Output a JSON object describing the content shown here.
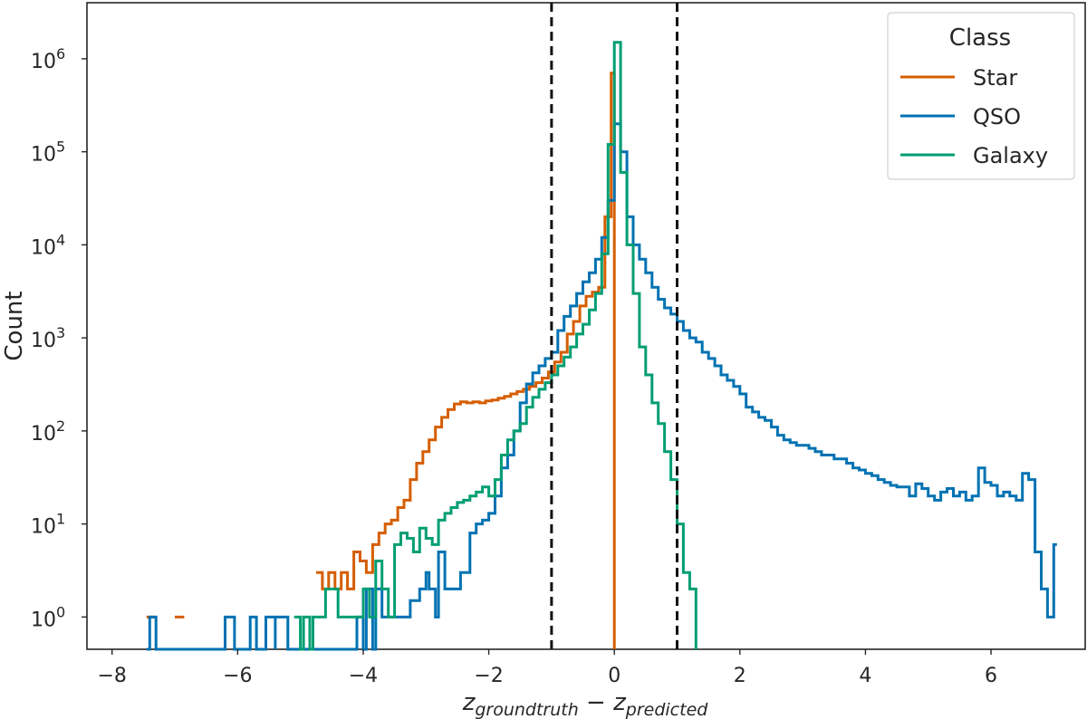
{
  "chart_data": {
    "type": "line",
    "drawstyle": "steps-post",
    "title": "",
    "xlabel": "z_{groundtruth} − z_{predicted}",
    "xlabel_parts": {
      "base1": "z",
      "sub1": "groundtruth",
      "op": " − ",
      "base2": "z",
      "sub2": "predicted"
    },
    "ylabel": "Count",
    "xlim": [
      -8.4,
      7.5
    ],
    "ylim": [
      0.45,
      4000000
    ],
    "yscale": "log",
    "grid": false,
    "x_ticks": [
      -8,
      -6,
      -4,
      -2,
      0,
      2,
      4,
      6
    ],
    "x_tick_labels": [
      "−8",
      "−6",
      "−4",
      "−2",
      "0",
      "2",
      "4",
      "6"
    ],
    "y_ticks": [
      1,
      10,
      100,
      1000,
      10000,
      100000,
      1000000
    ],
    "y_tick_labels": [
      {
        "base": "10",
        "exp": "0"
      },
      {
        "base": "10",
        "exp": "1"
      },
      {
        "base": "10",
        "exp": "2"
      },
      {
        "base": "10",
        "exp": "3"
      },
      {
        "base": "10",
        "exp": "4"
      },
      {
        "base": "10",
        "exp": "5"
      },
      {
        "base": "10",
        "exp": "6"
      }
    ],
    "reference_lines": [
      -1,
      1
    ],
    "legend": {
      "title": "Class",
      "placement": "top-right"
    },
    "series": [
      {
        "name": "Star",
        "color": "#d55e00",
        "points": [
          [
            -7.45,
            1
          ],
          [
            -7.3,
            null
          ],
          [
            -7.0,
            1
          ],
          [
            -6.85,
            null
          ],
          [
            -4.75,
            3
          ],
          [
            -4.65,
            2
          ],
          [
            -4.55,
            3
          ],
          [
            -4.45,
            2
          ],
          [
            -4.35,
            3
          ],
          [
            -4.25,
            2
          ],
          [
            -4.15,
            5
          ],
          [
            -4.05,
            4
          ],
          [
            -3.95,
            3
          ],
          [
            -3.85,
            6
          ],
          [
            -3.75,
            8
          ],
          [
            -3.65,
            10
          ],
          [
            -3.55,
            11
          ],
          [
            -3.45,
            15
          ],
          [
            -3.35,
            18
          ],
          [
            -3.25,
            30
          ],
          [
            -3.15,
            45
          ],
          [
            -3.05,
            60
          ],
          [
            -2.95,
            80
          ],
          [
            -2.85,
            110
          ],
          [
            -2.75,
            140
          ],
          [
            -2.65,
            170
          ],
          [
            -2.55,
            195
          ],
          [
            -2.45,
            205
          ],
          [
            -2.35,
            200
          ],
          [
            -2.25,
            205
          ],
          [
            -2.15,
            200
          ],
          [
            -2.05,
            210
          ],
          [
            -1.95,
            215
          ],
          [
            -1.85,
            225
          ],
          [
            -1.75,
            235
          ],
          [
            -1.65,
            250
          ],
          [
            -1.55,
            265
          ],
          [
            -1.45,
            280
          ],
          [
            -1.35,
            300
          ],
          [
            -1.25,
            330
          ],
          [
            -1.15,
            370
          ],
          [
            -1.05,
            430
          ],
          [
            -0.95,
            550
          ],
          [
            -0.85,
            700
          ],
          [
            -0.75,
            1100
          ],
          [
            -0.65,
            1500
          ],
          [
            -0.55,
            2200
          ],
          [
            -0.45,
            2800
          ],
          [
            -0.35,
            3100
          ],
          [
            -0.25,
            3500
          ],
          [
            -0.15,
            20000
          ],
          [
            -0.05,
            700000
          ],
          [
            0.0,
            0.2
          ]
        ]
      },
      {
        "name": "QSO",
        "color": "#0072b2",
        "points": [
          [
            -7.45,
            0.2
          ],
          [
            -7.4,
            1
          ],
          [
            -7.3,
            0.2
          ],
          [
            -6.2,
            1
          ],
          [
            -6.05,
            0.2
          ],
          [
            -5.8,
            1
          ],
          [
            -5.7,
            0.2
          ],
          [
            -5.55,
            1
          ],
          [
            -5.4,
            0.2
          ],
          [
            -5.4,
            1
          ],
          [
            -5.3,
            1
          ],
          [
            -5.2,
            0.2
          ],
          [
            -4.1,
            1
          ],
          [
            -4.0,
            0.2
          ],
          [
            -3.95,
            2
          ],
          [
            -3.85,
            0.2
          ],
          [
            -3.8,
            2
          ],
          [
            -3.7,
            1
          ],
          [
            -3.6,
            1
          ],
          [
            -3.5,
            1
          ],
          [
            -3.4,
            1
          ],
          [
            -3.3,
            1
          ],
          [
            -3.25,
            1.5
          ],
          [
            -3.1,
            2
          ],
          [
            -3.0,
            3
          ],
          [
            -2.95,
            2
          ],
          [
            -2.85,
            1
          ],
          [
            -2.8,
            5
          ],
          [
            -2.7,
            2
          ],
          [
            -2.6,
            2
          ],
          [
            -2.5,
            2
          ],
          [
            -2.45,
            3
          ],
          [
            -2.3,
            8
          ],
          [
            -2.2,
            10
          ],
          [
            -2.1,
            11
          ],
          [
            -2.0,
            13
          ],
          [
            -1.9,
            20
          ],
          [
            -1.8,
            40
          ],
          [
            -1.7,
            55
          ],
          [
            -1.6,
            100
          ],
          [
            -1.5,
            200
          ],
          [
            -1.4,
            320
          ],
          [
            -1.3,
            420
          ],
          [
            -1.2,
            500
          ],
          [
            -1.1,
            600
          ],
          [
            -1.0,
            700
          ],
          [
            -0.9,
            1200
          ],
          [
            -0.8,
            1700
          ],
          [
            -0.7,
            2200
          ],
          [
            -0.6,
            3000
          ],
          [
            -0.5,
            4000
          ],
          [
            -0.4,
            5000
          ],
          [
            -0.3,
            7000
          ],
          [
            -0.2,
            12000
          ],
          [
            -0.1,
            30000
          ],
          [
            0.0,
            200000
          ],
          [
            0.1,
            100000
          ],
          [
            0.2,
            20000
          ],
          [
            0.3,
            10000
          ],
          [
            0.4,
            7000
          ],
          [
            0.5,
            5000
          ],
          [
            0.6,
            3500
          ],
          [
            0.7,
            2600
          ],
          [
            0.8,
            2100
          ],
          [
            0.9,
            1800
          ],
          [
            1.0,
            1500
          ],
          [
            1.1,
            1200
          ],
          [
            1.2,
            1000
          ],
          [
            1.3,
            900
          ],
          [
            1.4,
            700
          ],
          [
            1.5,
            600
          ],
          [
            1.6,
            500
          ],
          [
            1.7,
            400
          ],
          [
            1.8,
            350
          ],
          [
            1.9,
            300
          ],
          [
            2.0,
            250
          ],
          [
            2.1,
            180
          ],
          [
            2.2,
            160
          ],
          [
            2.3,
            140
          ],
          [
            2.4,
            130
          ],
          [
            2.5,
            110
          ],
          [
            2.6,
            90
          ],
          [
            2.7,
            80
          ],
          [
            2.8,
            75
          ],
          [
            2.9,
            70
          ],
          [
            3.0,
            70
          ],
          [
            3.1,
            65
          ],
          [
            3.2,
            60
          ],
          [
            3.3,
            55
          ],
          [
            3.4,
            55
          ],
          [
            3.5,
            50
          ],
          [
            3.6,
            50
          ],
          [
            3.7,
            45
          ],
          [
            3.8,
            40
          ],
          [
            3.9,
            38
          ],
          [
            4.0,
            35
          ],
          [
            4.1,
            33
          ],
          [
            4.2,
            30
          ],
          [
            4.3,
            28
          ],
          [
            4.4,
            26
          ],
          [
            4.5,
            25
          ],
          [
            4.6,
            25
          ],
          [
            4.7,
            20
          ],
          [
            4.8,
            27
          ],
          [
            4.9,
            24
          ],
          [
            5.0,
            20
          ],
          [
            5.1,
            18
          ],
          [
            5.2,
            22
          ],
          [
            5.3,
            24
          ],
          [
            5.4,
            20
          ],
          [
            5.5,
            22
          ],
          [
            5.6,
            18
          ],
          [
            5.7,
            20
          ],
          [
            5.8,
            40
          ],
          [
            5.9,
            28
          ],
          [
            6.0,
            26
          ],
          [
            6.1,
            20
          ],
          [
            6.2,
            22
          ],
          [
            6.3,
            20
          ],
          [
            6.4,
            18
          ],
          [
            6.5,
            35
          ],
          [
            6.6,
            30
          ],
          [
            6.7,
            5
          ],
          [
            6.8,
            2
          ],
          [
            6.9,
            1
          ],
          [
            7.0,
            6
          ],
          [
            7.05,
            null
          ]
        ]
      },
      {
        "name": "Galaxy",
        "color": "#009e73",
        "points": [
          [
            -5.1,
            1
          ],
          [
            -5.0,
            0.2
          ],
          [
            -4.95,
            1
          ],
          [
            -4.85,
            0.2
          ],
          [
            -4.8,
            1
          ],
          [
            -4.7,
            1
          ],
          [
            -4.6,
            2
          ],
          [
            -4.5,
            2
          ],
          [
            -4.4,
            1
          ],
          [
            -4.3,
            1
          ],
          [
            -4.2,
            1
          ],
          [
            -4.1,
            1
          ],
          [
            -4.0,
            2
          ],
          [
            -3.9,
            1
          ],
          [
            -3.8,
            4
          ],
          [
            -3.7,
            2
          ],
          [
            -3.6,
            1
          ],
          [
            -3.5,
            6
          ],
          [
            -3.4,
            8
          ],
          [
            -3.3,
            7
          ],
          [
            -3.2,
            5
          ],
          [
            -3.1,
            9
          ],
          [
            -3.0,
            7
          ],
          [
            -2.9,
            6
          ],
          [
            -2.8,
            11
          ],
          [
            -2.7,
            13
          ],
          [
            -2.6,
            15
          ],
          [
            -2.5,
            17
          ],
          [
            -2.4,
            18
          ],
          [
            -2.3,
            20
          ],
          [
            -2.2,
            22
          ],
          [
            -2.1,
            25
          ],
          [
            -2.0,
            20
          ],
          [
            -1.9,
            30
          ],
          [
            -1.8,
            55
          ],
          [
            -1.7,
            80
          ],
          [
            -1.6,
            100
          ],
          [
            -1.5,
            120
          ],
          [
            -1.4,
            180
          ],
          [
            -1.3,
            230
          ],
          [
            -1.2,
            280
          ],
          [
            -1.1,
            330
          ],
          [
            -1.0,
            400
          ],
          [
            -0.9,
            500
          ],
          [
            -0.8,
            620
          ],
          [
            -0.7,
            800
          ],
          [
            -0.6,
            1100
          ],
          [
            -0.5,
            1400
          ],
          [
            -0.4,
            2000
          ],
          [
            -0.3,
            3000
          ],
          [
            -0.2,
            8000
          ],
          [
            -0.1,
            120000
          ],
          [
            0.0,
            1500000
          ],
          [
            0.1,
            60000
          ],
          [
            0.2,
            10000
          ],
          [
            0.3,
            3000
          ],
          [
            0.4,
            800
          ],
          [
            0.5,
            400
          ],
          [
            0.6,
            200
          ],
          [
            0.7,
            120
          ],
          [
            0.8,
            60
          ],
          [
            0.9,
            30
          ],
          [
            1.0,
            10
          ],
          [
            1.1,
            3
          ],
          [
            1.2,
            2
          ],
          [
            1.3,
            0.2
          ]
        ]
      }
    ]
  }
}
